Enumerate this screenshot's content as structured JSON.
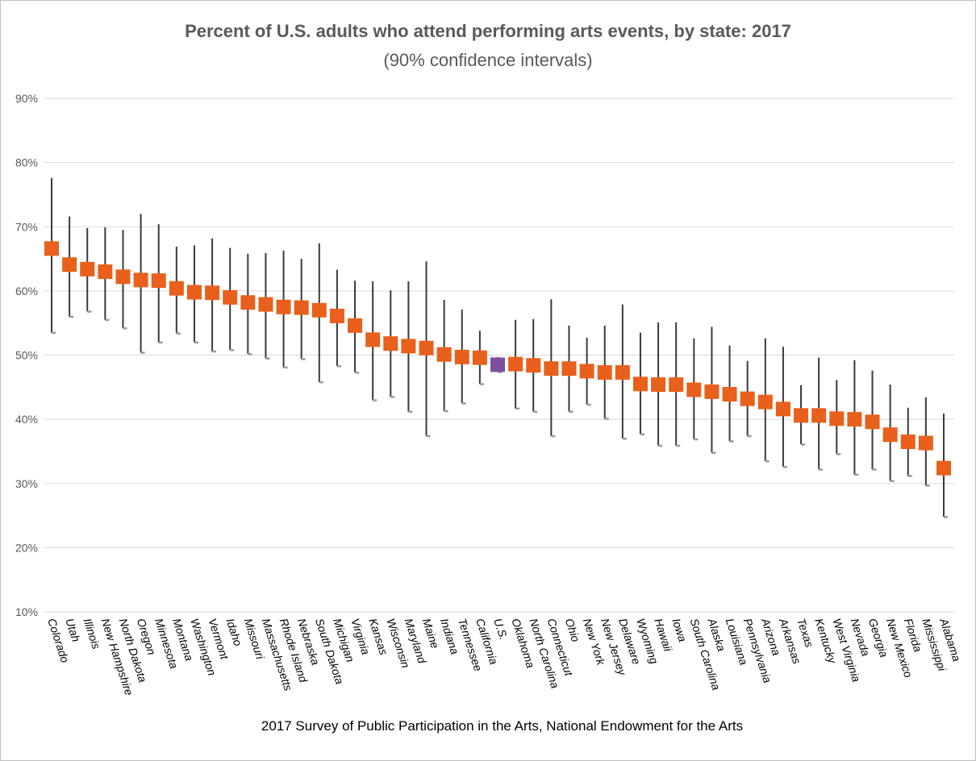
{
  "chart_data": {
    "type": "scatter",
    "title": "Percent of U.S. adults who attend performing arts events, by state: 2017",
    "subtitle": "(90% confidence intervals)",
    "source": "2017 Survey of Public Participation in the Arts, National Endowment for the Arts",
    "ylim": [
      10,
      90
    ],
    "yticks": [
      "10%",
      "20%",
      "30%",
      "40%",
      "50%",
      "60%",
      "70%",
      "80%",
      "90%"
    ],
    "grid": true,
    "colors": {
      "state": "#e8601c",
      "us": "#7b4f9e",
      "errorbar": "#3a3a3a",
      "grid": "#d9d9d9"
    },
    "points": [
      {
        "label": "Colorado",
        "value": 66.6,
        "low": 53.5,
        "high": 77.6
      },
      {
        "label": "Utah",
        "value": 64.1,
        "low": 56.0,
        "high": 71.6
      },
      {
        "label": "Illinois",
        "value": 63.4,
        "low": 56.8,
        "high": 69.8
      },
      {
        "label": "New Hampshire",
        "value": 63.0,
        "low": 55.5,
        "high": 69.9
      },
      {
        "label": "North Dakota",
        "value": 62.2,
        "low": 54.2,
        "high": 69.5
      },
      {
        "label": "Oregon",
        "value": 61.7,
        "low": 50.4,
        "high": 72.0
      },
      {
        "label": "Minnesota",
        "value": 61.6,
        "low": 52.0,
        "high": 70.4
      },
      {
        "label": "Montana",
        "value": 60.4,
        "low": 53.4,
        "high": 66.9
      },
      {
        "label": "Washington",
        "value": 59.8,
        "low": 52.0,
        "high": 67.1
      },
      {
        "label": "Vermont",
        "value": 59.7,
        "low": 50.6,
        "high": 68.2
      },
      {
        "label": "Idaho",
        "value": 59.0,
        "low": 50.8,
        "high": 66.7
      },
      {
        "label": "Missouri",
        "value": 58.2,
        "low": 50.2,
        "high": 65.8
      },
      {
        "label": "Massachusetts",
        "value": 57.9,
        "low": 49.5,
        "high": 65.9
      },
      {
        "label": "Rhode Island",
        "value": 57.5,
        "low": 48.1,
        "high": 66.3
      },
      {
        "label": "Nebraska",
        "value": 57.4,
        "low": 49.4,
        "high": 65.0
      },
      {
        "label": "South Dakota",
        "value": 57.0,
        "low": 45.8,
        "high": 67.4
      },
      {
        "label": "Michigan",
        "value": 56.1,
        "low": 48.3,
        "high": 63.3
      },
      {
        "label": "Virginia",
        "value": 54.6,
        "low": 47.3,
        "high": 61.6
      },
      {
        "label": "Kansas",
        "value": 52.4,
        "low": 43.0,
        "high": 61.5
      },
      {
        "label": "Wisconsin",
        "value": 51.8,
        "low": 43.5,
        "high": 60.1
      },
      {
        "label": "Maryland",
        "value": 51.4,
        "low": 41.2,
        "high": 61.5
      },
      {
        "label": "Maine",
        "value": 51.1,
        "low": 37.4,
        "high": 64.6
      },
      {
        "label": "Indiana",
        "value": 50.1,
        "low": 41.3,
        "high": 58.6
      },
      {
        "label": "Tennessee",
        "value": 49.7,
        "low": 42.5,
        "high": 57.1
      },
      {
        "label": "California",
        "value": 49.6,
        "low": 45.5,
        "high": 53.8
      },
      {
        "label": "U.S.",
        "value": 48.5,
        "low": 47.4,
        "high": 49.7,
        "highlight": true
      },
      {
        "label": "Oklahoma",
        "value": 48.6,
        "low": 41.7,
        "high": 55.5
      },
      {
        "label": "North Carolina",
        "value": 48.4,
        "low": 41.2,
        "high": 55.6
      },
      {
        "label": "Connecticut",
        "value": 47.9,
        "low": 37.4,
        "high": 58.7
      },
      {
        "label": "Ohio",
        "value": 47.9,
        "low": 41.2,
        "high": 54.6
      },
      {
        "label": "New York",
        "value": 47.5,
        "low": 42.3,
        "high": 52.7
      },
      {
        "label": "New Jersey",
        "value": 47.3,
        "low": 40.1,
        "high": 54.6
      },
      {
        "label": "Delaware",
        "value": 47.3,
        "low": 37.0,
        "high": 57.9
      },
      {
        "label": "Wyoming",
        "value": 45.5,
        "low": 37.7,
        "high": 53.5
      },
      {
        "label": "Hawaii",
        "value": 45.4,
        "low": 35.9,
        "high": 55.1
      },
      {
        "label": "Iowa",
        "value": 45.4,
        "low": 35.9,
        "high": 55.1
      },
      {
        "label": "South Carolina",
        "value": 44.6,
        "low": 36.9,
        "high": 52.6
      },
      {
        "label": "Alaska",
        "value": 44.3,
        "low": 34.8,
        "high": 54.4
      },
      {
        "label": "Louisiana",
        "value": 43.9,
        "low": 36.6,
        "high": 51.5
      },
      {
        "label": "Pennsylvania",
        "value": 43.2,
        "low": 37.4,
        "high": 49.1
      },
      {
        "label": "Arizona",
        "value": 42.7,
        "low": 33.5,
        "high": 52.6
      },
      {
        "label": "Arkansas",
        "value": 41.6,
        "low": 32.6,
        "high": 51.3
      },
      {
        "label": "Texas",
        "value": 40.6,
        "low": 36.1,
        "high": 45.3
      },
      {
        "label": "Kentucky",
        "value": 40.6,
        "low": 32.2,
        "high": 49.6
      },
      {
        "label": "West Virginia",
        "value": 40.1,
        "low": 34.6,
        "high": 46.1
      },
      {
        "label": "Nevada",
        "value": 40.0,
        "low": 31.4,
        "high": 49.2
      },
      {
        "label": "Georgia",
        "value": 39.6,
        "low": 32.2,
        "high": 47.6
      },
      {
        "label": "New Mexico",
        "value": 37.6,
        "low": 30.4,
        "high": 45.4
      },
      {
        "label": "Florida",
        "value": 36.5,
        "low": 31.2,
        "high": 41.8
      },
      {
        "label": "Mississippi",
        "value": 36.3,
        "low": 29.7,
        "high": 43.4
      },
      {
        "label": "Alabama",
        "value": 32.4,
        "low": 24.8,
        "high": 40.9
      }
    ]
  }
}
